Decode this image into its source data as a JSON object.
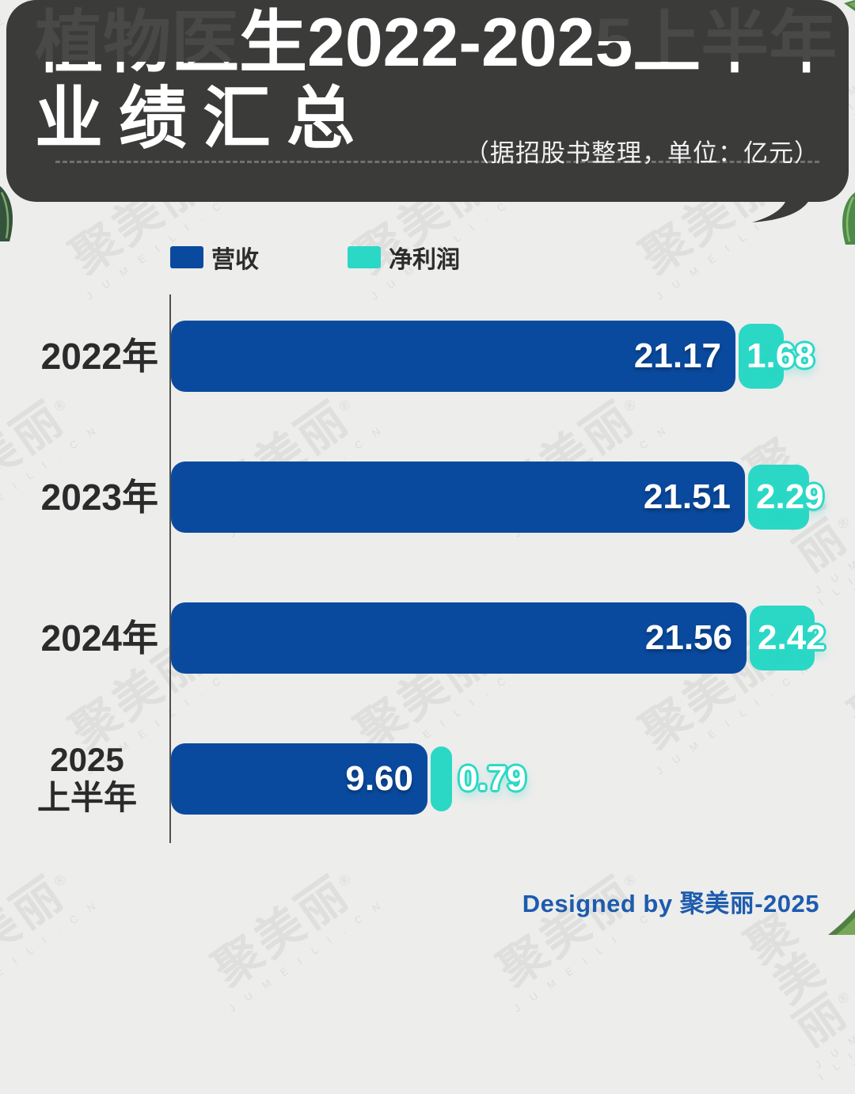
{
  "header": {
    "title_full": "植物医生2022-2025上半年业绩汇总",
    "title_line1_segments": [
      {
        "text": "植物医",
        "fade": "deep"
      },
      {
        "text": "生2022-202",
        "fade": "none"
      },
      {
        "text": "5",
        "fade": "part"
      },
      {
        "text": "上半年",
        "fade": "deep"
      }
    ],
    "title_line2": "业绩汇总",
    "subtitle": "（据招股书整理，单位：亿元）"
  },
  "legend": [
    {
      "label": "营收",
      "color": "#0a4a9e"
    },
    {
      "label": "净利润",
      "color": "#2bd8c6"
    }
  ],
  "chart_data": {
    "type": "bar",
    "orientation": "horizontal",
    "title": "植物医生2022-2025上半年业绩汇总",
    "subtitle": "据招股书整理",
    "unit": "亿元",
    "categories": [
      "2022年",
      "2023年",
      "2024年",
      "2025上半年"
    ],
    "categories_display": [
      "2022年",
      "2023年",
      "2024年",
      "2025\n上半年"
    ],
    "series": [
      {
        "name": "营收",
        "color": "#0a4a9e",
        "values": [
          21.17,
          21.51,
          21.56,
          9.6
        ],
        "labels": [
          "21.17",
          "21.51",
          "21.56",
          "9.60"
        ]
      },
      {
        "name": "净利润",
        "color": "#2bd8c6",
        "values": [
          1.68,
          2.29,
          2.42,
          0.79
        ],
        "labels": [
          "1.68",
          "2.29",
          "2.42",
          "0.79"
        ]
      }
    ],
    "xlim": [
      0,
      22
    ],
    "grid": false,
    "legend_position": "top-left"
  },
  "watermark": {
    "text": "聚美丽",
    "reg": "®",
    "sub": "J U M E I L I . C N"
  },
  "footer": {
    "credit": "Designed by 聚美丽-2025"
  },
  "colors": {
    "page_bg": "#ededec",
    "header_bg": "#3b3b3a",
    "revenue_blue": "#0a4a9e",
    "netprofit_teal": "#2bd8c6",
    "label_dark": "#2b2b2b",
    "credit_blue": "#1d5bad",
    "leaf_green_dark": "#35523c",
    "leaf_green": "#4c8a4a",
    "leaf_green_light": "#79a758"
  }
}
